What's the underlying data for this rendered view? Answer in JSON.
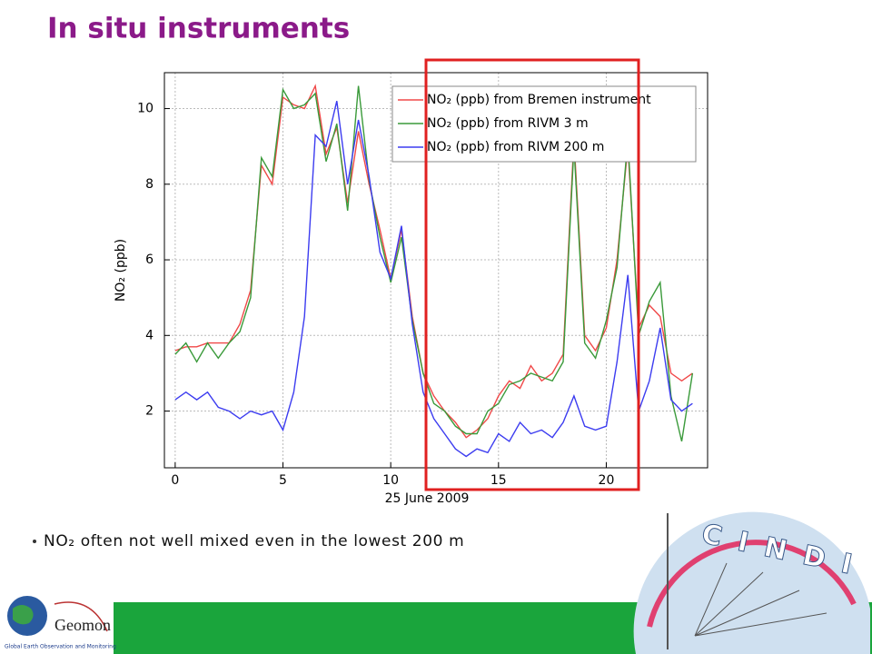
{
  "title": "In situ instruments",
  "chart_data": {
    "type": "line",
    "x_label": "25 June 2009",
    "y_label": "NO₂ (ppb)",
    "x": [
      0,
      0.5,
      1,
      1.5,
      2,
      2.5,
      3,
      3.5,
      4,
      4.5,
      5,
      5.5,
      6,
      6.5,
      7,
      7.5,
      8,
      8.5,
      9,
      9.5,
      10,
      10.5,
      11,
      11.5,
      12,
      12.5,
      13,
      13.5,
      14,
      14.5,
      15,
      15.5,
      16,
      16.5,
      17,
      17.5,
      18,
      18.5,
      19,
      19.5,
      20,
      20.5,
      21,
      21.5,
      22,
      22.5,
      23,
      23.5,
      24
    ],
    "series": [
      {
        "name": "NO₂ (ppb) from Bremen instrument",
        "color": "#f04848",
        "values": [
          3.6,
          3.7,
          3.7,
          3.8,
          3.8,
          3.8,
          4.3,
          5.2,
          8.5,
          8.0,
          10.3,
          10.1,
          10.0,
          10.6,
          8.8,
          9.5,
          7.5,
          9.4,
          8.0,
          6.8,
          5.5,
          6.8,
          4.5,
          3.0,
          2.4,
          2.0,
          1.7,
          1.3,
          1.5,
          1.8,
          2.4,
          2.8,
          2.6,
          3.2,
          2.8,
          3.0,
          3.5,
          9.2,
          4.0,
          3.6,
          4.2,
          6.0,
          9.0,
          4.2,
          4.8,
          4.5,
          3.0,
          2.8,
          3.0
        ]
      },
      {
        "name": "NO₂ (ppb) from RIVM 3 m",
        "color": "#3a9a3a",
        "values": [
          3.5,
          3.8,
          3.3,
          3.8,
          3.4,
          3.8,
          4.1,
          5.0,
          8.7,
          8.2,
          10.5,
          10.0,
          10.1,
          10.4,
          8.6,
          9.6,
          7.3,
          10.6,
          8.1,
          6.6,
          5.4,
          6.6,
          4.4,
          3.0,
          2.2,
          2.0,
          1.6,
          1.4,
          1.4,
          2.0,
          2.2,
          2.7,
          2.8,
          3.0,
          2.9,
          2.8,
          3.3,
          9.0,
          3.8,
          3.4,
          4.4,
          5.8,
          9.2,
          4.0,
          4.9,
          5.4,
          2.4,
          1.2,
          3.0
        ]
      },
      {
        "name": "NO₂ (ppb) from RIVM 200 m",
        "color": "#3c3cf0",
        "values": [
          2.3,
          2.5,
          2.3,
          2.5,
          2.1,
          2.0,
          1.8,
          2.0,
          1.9,
          2.0,
          1.5,
          2.5,
          4.5,
          9.3,
          9.0,
          10.2,
          8.0,
          9.7,
          8.2,
          6.2,
          5.5,
          6.9,
          4.3,
          2.5,
          1.8,
          1.4,
          1.0,
          0.8,
          1.0,
          0.9,
          1.4,
          1.2,
          1.7,
          1.4,
          1.5,
          1.3,
          1.7,
          2.4,
          1.6,
          1.5,
          1.6,
          3.3,
          5.6,
          2.0,
          2.8,
          4.2,
          2.3,
          2.0,
          2.2
        ]
      }
    ],
    "xlim": [
      -0.5,
      24.7
    ],
    "xticks": [
      0,
      5,
      10,
      15,
      20
    ],
    "ylim": [
      0.5,
      10.95
    ],
    "yticks": [
      2,
      4,
      6,
      8,
      10
    ],
    "grid": true,
    "legend": "upper right"
  },
  "bullet": "NO₂ often not well mixed even in the lowest 200 m",
  "logos": {
    "geomon": "Geomon",
    "geomon_sub": "Global Earth Observation and Monitoring",
    "cindi": "C I N D I"
  }
}
